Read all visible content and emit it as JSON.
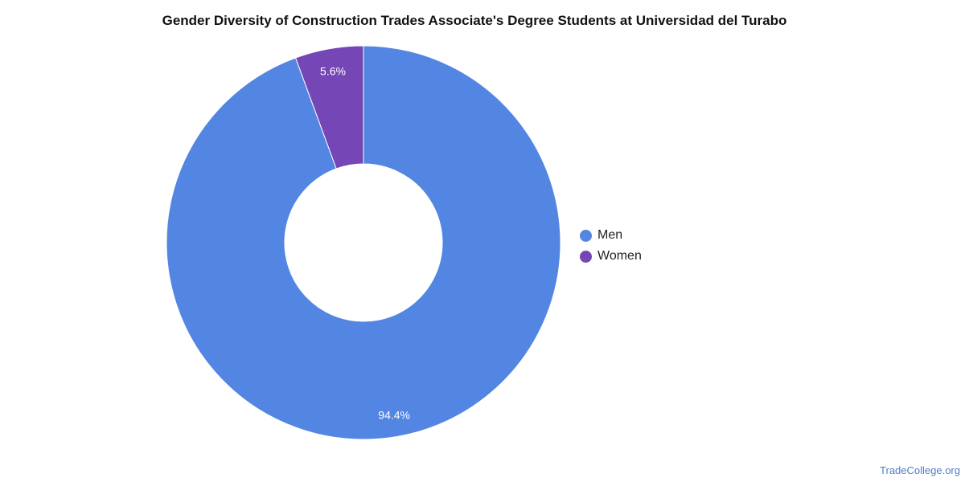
{
  "chart_data": {
    "type": "pie",
    "title": "Gender Diversity of Construction Trades Associate's Degree Students at Universidad del Turabo",
    "categories": [
      "Men",
      "Women"
    ],
    "values": [
      94.4,
      5.6
    ],
    "value_labels": [
      "94.4%",
      "5.6%"
    ],
    "colors": [
      "#5385e2",
      "#7546b5"
    ],
    "donut": true,
    "legend_position": "right"
  },
  "source": "TradeCollege.org"
}
